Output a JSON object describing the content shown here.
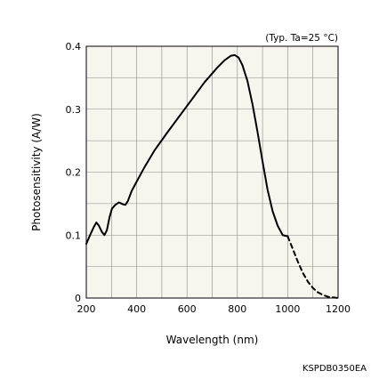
{
  "chart_data": {
    "type": "line",
    "title": "",
    "note": "(Typ. Ta=25 °C)",
    "xlabel": "Wavelength (nm)",
    "ylabel": "Photosensitivity (A/W)",
    "xlim": [
      200,
      1200
    ],
    "ylim": [
      0,
      0.4
    ],
    "xticks": [
      200,
      400,
      600,
      800,
      1000,
      1200
    ],
    "yticks": [
      0,
      0.1,
      0.2,
      0.3,
      0.4
    ],
    "ytick_labels": [
      "0",
      "0.1",
      "0.2",
      "0.3",
      "0.4"
    ],
    "grid": true,
    "series": [
      {
        "style": "solid",
        "x": [
          200,
          215,
          230,
          240,
          250,
          262,
          272,
          282,
          292,
          302,
          315,
          330,
          345,
          355,
          365,
          380,
          400,
          430,
          470,
          520,
          570,
          620,
          670,
          720,
          750,
          775,
          790,
          805,
          820,
          840,
          860,
          880,
          900,
          920,
          940,
          960,
          980,
          1000
        ],
        "y": [
          0.086,
          0.1,
          0.113,
          0.12,
          0.115,
          0.105,
          0.1,
          0.108,
          0.128,
          0.142,
          0.148,
          0.152,
          0.149,
          0.148,
          0.154,
          0.17,
          0.185,
          0.207,
          0.234,
          0.262,
          0.289,
          0.316,
          0.343,
          0.366,
          0.378,
          0.385,
          0.386,
          0.382,
          0.37,
          0.345,
          0.308,
          0.264,
          0.217,
          0.172,
          0.138,
          0.115,
          0.1,
          0.098
        ]
      },
      {
        "style": "dashed",
        "x": [
          1000,
          1020,
          1040,
          1060,
          1080,
          1100,
          1120,
          1140,
          1160,
          1180,
          1200
        ],
        "y": [
          0.098,
          0.078,
          0.058,
          0.04,
          0.026,
          0.016,
          0.009,
          0.005,
          0.002,
          0.001,
          0.0
        ]
      }
    ],
    "code": "KSPDB0350EA"
  }
}
